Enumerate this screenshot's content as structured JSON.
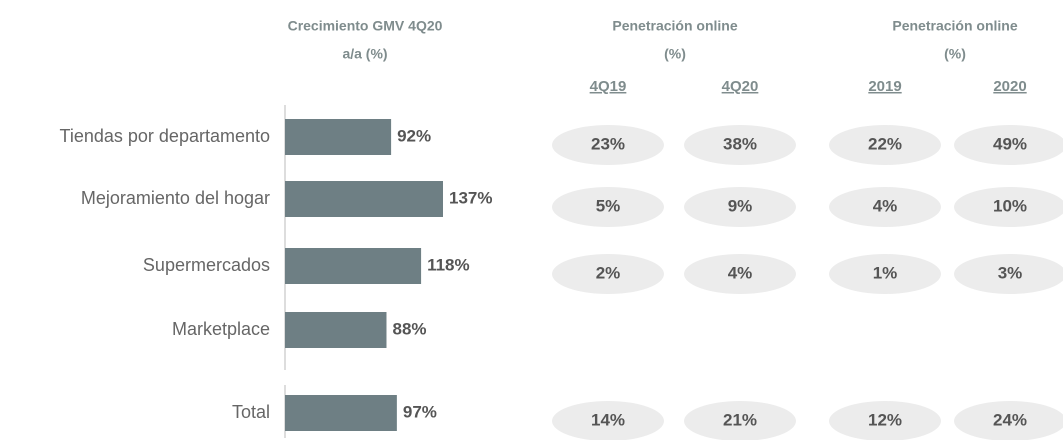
{
  "chart_data": {
    "type": "bar",
    "orientation": "horizontal",
    "title": "Crecimiento GMV 4Q20",
    "subtitle": "a/a (%)",
    "categories": [
      "Tiendas por departamento",
      "Mejoramiento del hogar",
      "Supermercados",
      "Marketplace",
      "Total"
    ],
    "values": [
      92,
      137,
      118,
      88,
      97
    ],
    "value_labels": [
      "92%",
      "137%",
      "118%",
      "88%",
      "97%"
    ],
    "color": "#6e7f84"
  },
  "table": {
    "groups": [
      {
        "title": "Penetración online",
        "unit": "(%)",
        "columns": [
          "4Q19",
          "4Q20"
        ]
      },
      {
        "title": "Penetración online",
        "unit": "(%)",
        "columns": [
          "2019",
          "2020"
        ]
      }
    ],
    "rows": [
      [
        "23%",
        "38%",
        "22%",
        "49%"
      ],
      [
        "5%",
        "9%",
        "4%",
        "10%"
      ],
      [
        "2%",
        "4%",
        "1%",
        "3%"
      ],
      [],
      [
        "14%",
        "21%",
        "12%",
        "24%"
      ]
    ]
  }
}
